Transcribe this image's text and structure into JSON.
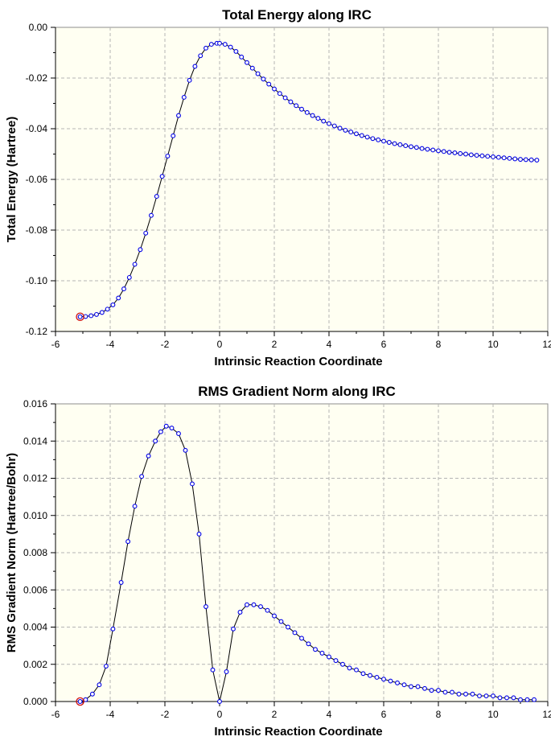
{
  "chart_data": [
    {
      "type": "line",
      "title": "Total Energy along IRC",
      "xlabel": "Intrinsic Reaction Coordinate",
      "ylabel": "Total Energy (Hartree)",
      "xlim": [
        -6,
        12
      ],
      "ylim": [
        -0.12,
        0.0
      ],
      "xticks": [
        -6,
        -4,
        -2,
        0,
        2,
        4,
        6,
        8,
        10,
        12
      ],
      "yticks": [
        0.0,
        -0.02,
        -0.04,
        -0.06,
        -0.08,
        -0.1,
        -0.12
      ],
      "ytick_labels": [
        "0.00",
        "-0.02",
        "-0.04",
        "-0.06",
        "-0.08",
        "-0.10",
        "-0.12"
      ],
      "grid": true,
      "highlighted_point_index": 0,
      "series": [
        {
          "x": [
            -5.1,
            -4.9,
            -4.7,
            -4.5,
            -4.3,
            -4.1,
            -3.9,
            -3.7,
            -3.5,
            -3.3,
            -3.1,
            -2.9,
            -2.7,
            -2.5,
            -2.3,
            -2.1,
            -1.9,
            -1.7,
            -1.5,
            -1.3,
            -1.1,
            -0.9,
            -0.7,
            -0.5,
            -0.3,
            -0.1,
            0.0,
            0.2,
            0.4,
            0.6,
            0.8,
            1.0,
            1.2,
            1.4,
            1.6,
            1.8,
            2.0,
            2.2,
            2.4,
            2.6,
            2.8,
            3.0,
            3.2,
            3.4,
            3.6,
            3.8,
            4.0,
            4.2,
            4.4,
            4.6,
            4.8,
            5.0,
            5.2,
            5.4,
            5.6,
            5.8,
            6.0,
            6.2,
            6.4,
            6.6,
            6.8,
            7.0,
            7.2,
            7.4,
            7.6,
            7.8,
            8.0,
            8.2,
            8.4,
            8.6,
            8.8,
            9.0,
            9.2,
            9.4,
            9.6,
            9.8,
            10.0,
            10.2,
            10.4,
            10.6,
            10.8,
            11.0,
            11.2,
            11.4,
            11.6
          ],
          "y": [
            -0.1142,
            -0.1141,
            -0.1138,
            -0.1133,
            -0.1125,
            -0.1112,
            -0.1095,
            -0.1068,
            -0.1032,
            -0.0987,
            -0.0935,
            -0.0877,
            -0.0812,
            -0.0742,
            -0.0667,
            -0.0588,
            -0.0508,
            -0.0428,
            -0.0348,
            -0.0276,
            -0.0209,
            -0.0154,
            -0.0112,
            -0.0082,
            -0.0067,
            -0.0063,
            -0.0063,
            -0.0067,
            -0.0078,
            -0.0095,
            -0.0117,
            -0.0139,
            -0.0161,
            -0.0183,
            -0.0204,
            -0.0224,
            -0.0243,
            -0.0261,
            -0.0278,
            -0.0294,
            -0.0309,
            -0.0323,
            -0.0336,
            -0.0348,
            -0.0359,
            -0.037,
            -0.038,
            -0.0389,
            -0.0398,
            -0.0406,
            -0.0413,
            -0.042,
            -0.0427,
            -0.0433,
            -0.0439,
            -0.0444,
            -0.0449,
            -0.0454,
            -0.0459,
            -0.0463,
            -0.0467,
            -0.0471,
            -0.0474,
            -0.0478,
            -0.0481,
            -0.0484,
            -0.0487,
            -0.049,
            -0.0493,
            -0.0495,
            -0.0498,
            -0.05,
            -0.0503,
            -0.0505,
            -0.0507,
            -0.0509,
            -0.0511,
            -0.0513,
            -0.0515,
            -0.0517,
            -0.0519,
            -0.0521,
            -0.0522,
            -0.0523,
            -0.0524
          ]
        }
      ]
    },
    {
      "type": "line",
      "title": "RMS Gradient Norm along IRC",
      "xlabel": "Intrinsic Reaction Coordinate",
      "ylabel": "RMS Gradient Norm (Hartree/Bohr)",
      "xlim": [
        -6,
        12
      ],
      "ylim": [
        0.0,
        0.016
      ],
      "xticks": [
        -6,
        -4,
        -2,
        0,
        2,
        4,
        6,
        8,
        10,
        12
      ],
      "yticks": [
        0.016,
        0.014,
        0.012,
        0.01,
        0.008,
        0.006,
        0.004,
        0.002,
        0.0
      ],
      "ytick_labels": [
        "0.016",
        "0.014",
        "0.012",
        "0.010",
        "0.008",
        "0.006",
        "0.004",
        "0.002",
        "0.000"
      ],
      "grid": true,
      "highlighted_point_index": 0,
      "series": [
        {
          "x": [
            -5.1,
            -4.9,
            -4.65,
            -4.4,
            -4.15,
            -3.9,
            -3.6,
            -3.35,
            -3.1,
            -2.85,
            -2.6,
            -2.35,
            -2.15,
            -1.95,
            -1.75,
            -1.5,
            -1.25,
            -1.0,
            -0.75,
            -0.5,
            -0.25,
            0.0,
            0.25,
            0.5,
            0.75,
            1.0,
            1.25,
            1.5,
            1.75,
            2.0,
            2.25,
            2.5,
            2.75,
            3.0,
            3.25,
            3.5,
            3.75,
            4.0,
            4.25,
            4.5,
            4.75,
            5.0,
            5.25,
            5.5,
            5.75,
            6.0,
            6.25,
            6.5,
            6.75,
            7.0,
            7.25,
            7.5,
            7.75,
            8.0,
            8.25,
            8.5,
            8.75,
            9.0,
            9.25,
            9.5,
            9.75,
            10.0,
            10.25,
            10.5,
            10.75,
            11.0,
            11.25,
            11.5
          ],
          "y": [
            0.0,
            0.0001,
            0.0004,
            0.0009,
            0.0019,
            0.0039,
            0.0064,
            0.0086,
            0.0105,
            0.0121,
            0.0132,
            0.014,
            0.0145,
            0.0148,
            0.0147,
            0.0144,
            0.0135,
            0.0117,
            0.009,
            0.0051,
            0.0017,
            0.0,
            0.0016,
            0.0039,
            0.0048,
            0.0052,
            0.0052,
            0.0051,
            0.0049,
            0.0046,
            0.0043,
            0.004,
            0.0037,
            0.0034,
            0.0031,
            0.0028,
            0.0026,
            0.0024,
            0.0022,
            0.002,
            0.0018,
            0.0017,
            0.0015,
            0.0014,
            0.0013,
            0.0012,
            0.0011,
            0.001,
            0.0009,
            0.0008,
            0.0008,
            0.0007,
            0.0006,
            0.0006,
            0.0005,
            0.0005,
            0.0004,
            0.0004,
            0.0004,
            0.0003,
            0.0003,
            0.0003,
            0.0002,
            0.0002,
            0.0002,
            0.0001,
            0.0001,
            0.0001
          ]
        }
      ]
    }
  ]
}
